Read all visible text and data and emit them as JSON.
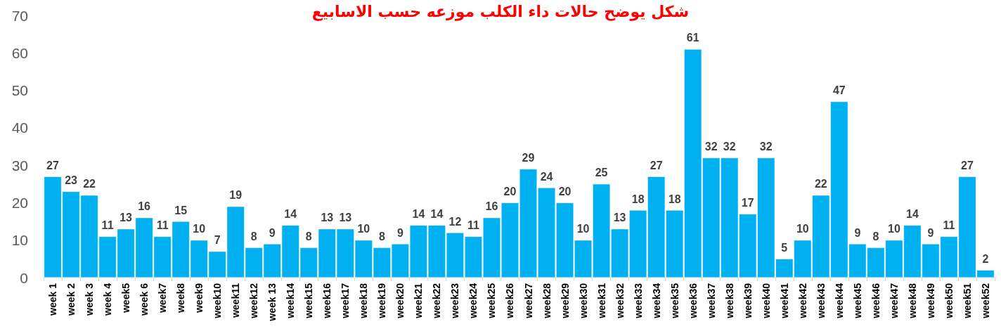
{
  "chart_data": {
    "type": "bar",
    "title": "شكل يوضح حالات داء الكلب موزعه حسب الاسابيع",
    "categories": [
      "week 1",
      "week 2",
      "week 3",
      "week 4",
      "week5",
      "week 6",
      "week7",
      "week8",
      "week9",
      "week10",
      "week11",
      "week12",
      "week 13",
      "week14",
      "week15",
      "week16",
      "week17",
      "week18",
      "week19",
      "week20",
      "week21",
      "week22",
      "week23",
      "week24",
      "week25",
      "week26",
      "week27",
      "week28",
      "week29",
      "week30",
      "week31",
      "week32",
      "week33",
      "week34",
      "week35",
      "week36",
      "week37",
      "week38",
      "week39",
      "week40",
      "week41",
      "week42",
      "week43",
      "week44",
      "week45",
      "week46",
      "week47",
      "week48",
      "week49",
      "week50",
      "week51",
      "week52"
    ],
    "values": [
      27,
      23,
      22,
      11,
      13,
      16,
      11,
      15,
      10,
      7,
      19,
      8,
      9,
      14,
      8,
      13,
      13,
      10,
      8,
      9,
      14,
      14,
      12,
      11,
      16,
      20,
      29,
      24,
      20,
      10,
      25,
      13,
      18,
      27,
      18,
      61,
      32,
      32,
      17,
      32,
      5,
      10,
      22,
      47,
      9,
      8,
      10,
      14,
      9,
      11,
      27,
      2
    ],
    "color": "#00b0f0",
    "ylim": [
      0,
      70
    ],
    "yticks": [
      0,
      10,
      20,
      30,
      40,
      50,
      60,
      70
    ],
    "grid": false,
    "data_labels": true
  }
}
